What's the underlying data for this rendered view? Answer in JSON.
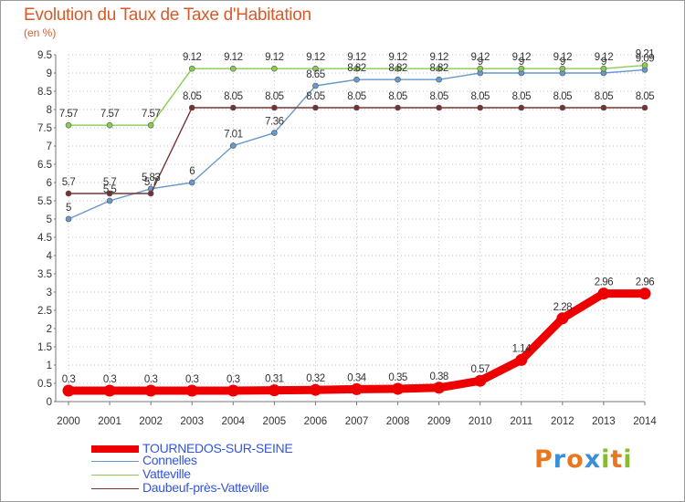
{
  "chart_data": {
    "type": "line",
    "title": "Evolution du Taux de Taxe d'Habitation",
    "subtitle": "(en %)",
    "xlabel": "",
    "ylabel": "",
    "x": [
      "2000",
      "2001",
      "2002",
      "2003",
      "2004",
      "2005",
      "2006",
      "2007",
      "2008",
      "2009",
      "2010",
      "2011",
      "2012",
      "2013",
      "2014"
    ],
    "ylim": [
      0,
      9.5
    ],
    "yticks": [
      "0",
      "0.5",
      "1",
      "1.5",
      "2",
      "2.5",
      "3",
      "3.5",
      "4",
      "4.5",
      "5",
      "5.5",
      "6",
      "6.5",
      "7",
      "7.5",
      "8",
      "8.5",
      "9",
      "9.5"
    ],
    "grid": "dotted",
    "legend_position": "bottom",
    "series": [
      {
        "name": "TOURNEDOS-SUR-SEINE",
        "color": "#ee0000",
        "values": [
          0.3,
          0.3,
          0.3,
          0.3,
          0.3,
          0.31,
          0.32,
          0.34,
          0.35,
          0.38,
          0.57,
          1.14,
          2.28,
          2.96,
          2.96
        ],
        "labels": [
          "0.3",
          "0.3",
          "0.3",
          "0.3",
          "0.3",
          "0.31",
          "0.32",
          "0.34",
          "0.35",
          "0.38",
          "0.57",
          "1.14",
          "2.28",
          "2.96",
          "2.96"
        ]
      },
      {
        "name": "Connelles",
        "color": "#6699cc",
        "values": [
          5,
          5.5,
          5.83,
          6,
          7.01,
          7.36,
          8.65,
          8.82,
          8.82,
          8.82,
          9,
          9,
          9,
          9,
          9.09
        ],
        "labels": [
          "5",
          "5.5",
          "5.83",
          "6",
          "7.01",
          "7.36",
          "8.65",
          "8.82",
          "8.82",
          "8.82",
          "9",
          "9",
          "9",
          "9",
          "9.09"
        ]
      },
      {
        "name": "Vatteville",
        "color": "#88cc55",
        "values": [
          7.57,
          7.57,
          7.57,
          9.12,
          9.12,
          9.12,
          9.12,
          9.12,
          9.12,
          9.12,
          9.12,
          9.12,
          9.12,
          9.12,
          9.21
        ],
        "labels": [
          "7.57",
          "7.57",
          "7.57",
          "9.12",
          "9.12",
          "9.12",
          "9.12",
          "9.12",
          "9.12",
          "9.12",
          "9.12",
          "9.12",
          "9.12",
          "9.12",
          "9.21"
        ]
      },
      {
        "name": "Daubeuf-près-Vatteville",
        "color": "#773333",
        "values": [
          5.7,
          5.7,
          5.7,
          8.05,
          8.05,
          8.05,
          8.05,
          8.05,
          8.05,
          8.05,
          8.05,
          8.05,
          8.05,
          8.05,
          8.05
        ],
        "labels": [
          "5.7",
          "5.7",
          "5.7",
          "8.05",
          "8.05",
          "8.05",
          "8.05",
          "8.05",
          "8.05",
          "8.05",
          "8.05",
          "8.05",
          "8.05",
          "8.05",
          "8.05"
        ]
      }
    ]
  },
  "legend": {
    "items": [
      {
        "label": "TOURNEDOS-SUR-SEINE",
        "color": "#ee0000",
        "text_color": "#3355dd"
      },
      {
        "label": "Connelles",
        "color": "#6699cc",
        "text_color": "#3355dd"
      },
      {
        "label": "Vatteville",
        "color": "#88cc55",
        "text_color": "#3355dd"
      },
      {
        "label": "Daubeuf-près-Vatteville",
        "color": "#773333",
        "text_color": "#3355dd"
      }
    ]
  },
  "logo": {
    "text": "Proxiti",
    "letters": [
      {
        "ch": "P",
        "color": "#e87722"
      },
      {
        "ch": "r",
        "color": "#3c8fd6"
      },
      {
        "ch": "o",
        "color": "#e87722"
      },
      {
        "ch": "x",
        "color": "#3c8fd6"
      },
      {
        "ch": "i",
        "color": "#88bb33"
      },
      {
        "ch": "t",
        "color": "#e87722"
      },
      {
        "ch": "i",
        "color": "#88bb33"
      }
    ]
  }
}
